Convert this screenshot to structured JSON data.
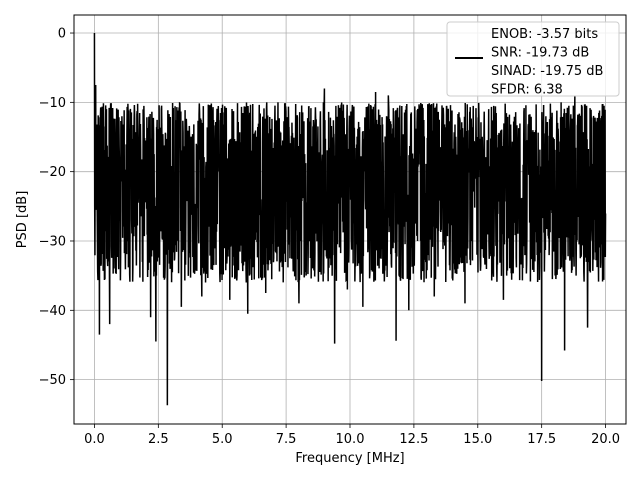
{
  "chart_data": {
    "type": "line",
    "title": "",
    "xlabel": "Frequency [MHz]",
    "ylabel": "PSD [dB]",
    "xlim": [
      -0.8,
      20.8
    ],
    "ylim": [
      -56.4,
      2.6
    ],
    "xticks": [
      0.0,
      2.5,
      5.0,
      7.5,
      10.0,
      12.5,
      15.0,
      17.5,
      20.0
    ],
    "xtick_labels": [
      "0.0",
      "2.5",
      "5.0",
      "7.5",
      "10.0",
      "12.5",
      "15.0",
      "17.5",
      "20.0"
    ],
    "yticks": [
      0,
      -10,
      -20,
      -30,
      -40,
      -50
    ],
    "ytick_labels": [
      "0",
      "−10",
      "−20",
      "−30",
      "−40",
      "−50"
    ],
    "grid": true,
    "legend_position": "upper-right",
    "series": [
      {
        "name": "ENOB: -3.57 bits\nSNR: -19.73 dB\nSINAD: -19.75 dB\nSFDR: 6.38",
        "color": "#000000",
        "x_range": [
          0.0,
          20.0
        ],
        "point_count": 2048,
        "peak": {
          "x": 0.0,
          "y": 0.0
        },
        "baseline_mean": -22,
        "band_upper_approx": -10,
        "band_lower_approx": -36,
        "notable_dips": [
          {
            "x": 0.2,
            "y": -43.5
          },
          {
            "x": 0.6,
            "y": -42.0
          },
          {
            "x": 2.2,
            "y": -41.0
          },
          {
            "x": 2.4,
            "y": -44.5
          },
          {
            "x": 2.85,
            "y": -53.7
          },
          {
            "x": 3.4,
            "y": -39.5
          },
          {
            "x": 4.2,
            "y": -38.0
          },
          {
            "x": 5.3,
            "y": -38.5
          },
          {
            "x": 6.0,
            "y": -40.5
          },
          {
            "x": 6.7,
            "y": -37.5
          },
          {
            "x": 8.0,
            "y": -39.0
          },
          {
            "x": 9.4,
            "y": -44.8
          },
          {
            "x": 9.9,
            "y": -37.0
          },
          {
            "x": 10.5,
            "y": -39.5
          },
          {
            "x": 11.0,
            "y": -38.0
          },
          {
            "x": 11.8,
            "y": -44.4
          },
          {
            "x": 12.3,
            "y": -40.0
          },
          {
            "x": 13.3,
            "y": -38.0
          },
          {
            "x": 14.5,
            "y": -39.0
          },
          {
            "x": 16.0,
            "y": -38.5
          },
          {
            "x": 17.5,
            "y": -50.2
          },
          {
            "x": 18.4,
            "y": -45.8
          },
          {
            "x": 19.3,
            "y": -42.5
          }
        ],
        "notable_peaks": [
          {
            "x": 0.05,
            "y": -7.5
          },
          {
            "x": 9.0,
            "y": -8.0
          },
          {
            "x": 11.0,
            "y": -8.5
          },
          {
            "x": 11.5,
            "y": -9.0
          },
          {
            "x": 18.8,
            "y": -9.0
          }
        ]
      }
    ]
  }
}
